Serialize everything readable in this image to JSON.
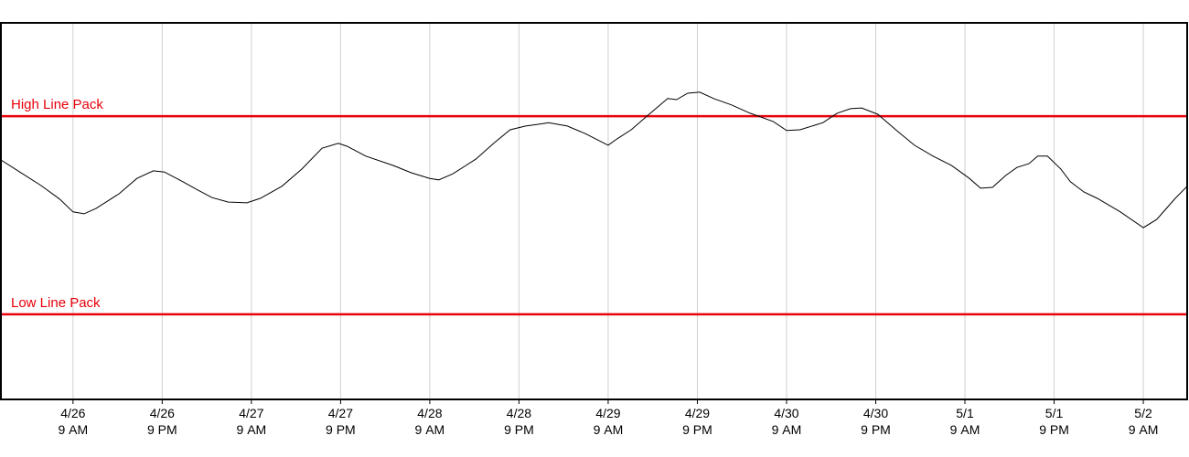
{
  "chart_data": {
    "type": "line",
    "xlim": [
      -9.7,
      149.9
    ],
    "ylim": [
      0,
      100
    ],
    "xticks": [
      {
        "value": 0,
        "label": "4/26 9 AM"
      },
      {
        "value": 12,
        "label": "4/26 9 PM"
      },
      {
        "value": 24,
        "label": "4/27 9 AM"
      },
      {
        "value": 36,
        "label": "4/27 9 PM"
      },
      {
        "value": 48,
        "label": "4/28 9 AM"
      },
      {
        "value": 60,
        "label": "4/28 9 PM"
      },
      {
        "value": 72,
        "label": "4/29 9 AM"
      },
      {
        "value": 84,
        "label": "4/29 9 PM"
      },
      {
        "value": 96,
        "label": "4/30 9 AM"
      },
      {
        "value": 108,
        "label": "4/30 9 PM"
      },
      {
        "value": 120,
        "label": "5/1 9 AM"
      },
      {
        "value": 132,
        "label": "5/1 9 PM"
      },
      {
        "value": 144,
        "label": "5/2 9 AM"
      }
    ],
    "grid": true,
    "series": [
      {
        "color": "#000000",
        "x": [
          -9.7,
          -7.4,
          -4.3,
          -1.8,
          0,
          1.5,
          3.1,
          6.2,
          8.6,
          10.8,
          12.3,
          14.8,
          16.6,
          18.7,
          20.9,
          23.4,
          25.2,
          28.1,
          30.8,
          33.5,
          35.7,
          36.9,
          39.4,
          43.1,
          45.5,
          48.0,
          49.2,
          51.1,
          54.2,
          56.6,
          58.8,
          60.9,
          62.8,
          64.0,
          66.5,
          68.9,
          72.0,
          73.2,
          75.1,
          77.5,
          80.0,
          81.2,
          82.7,
          84.3,
          86.2,
          88.6,
          91.1,
          94.2,
          96.0,
          97.8,
          100.9,
          102.8,
          104.6,
          106.1,
          108.3,
          110.8,
          113.2,
          115.7,
          118.2,
          120.6,
          122.1,
          123.7,
          125.5,
          127.0,
          128.6,
          129.8,
          131.1,
          132.9,
          134.2,
          136.0,
          137.8,
          140.9,
          144.0,
          145.8,
          148.3,
          149.9
        ],
        "values": [
          63.6,
          60.7,
          56.8,
          53.2,
          49.8,
          49.3,
          50.7,
          54.6,
          58.7,
          60.7,
          60.4,
          57.8,
          55.8,
          53.6,
          52.4,
          52.2,
          53.4,
          56.6,
          61.2,
          66.7,
          68.0,
          67.2,
          64.6,
          62.1,
          60.2,
          58.7,
          58.3,
          59.9,
          63.8,
          68.0,
          71.6,
          72.6,
          73.1,
          73.5,
          72.6,
          70.6,
          67.5,
          69.2,
          71.6,
          75.7,
          79.9,
          79.6,
          81.3,
          81.6,
          79.9,
          78.2,
          76.0,
          73.8,
          71.4,
          71.6,
          73.5,
          76.0,
          77.2,
          77.4,
          75.7,
          71.4,
          67.5,
          64.6,
          62.1,
          58.7,
          56.1,
          56.3,
          59.5,
          61.6,
          62.6,
          64.6,
          64.6,
          61.2,
          57.8,
          55.1,
          53.4,
          49.8,
          45.6,
          47.8,
          53.4,
          56.6
        ]
      }
    ],
    "reference_lines": [
      {
        "label": "High Line Pack",
        "value": 75.2,
        "color": "#e8000b"
      },
      {
        "label": "Low Line Pack",
        "value": 22.6,
        "color": "#e8000b"
      }
    ]
  }
}
